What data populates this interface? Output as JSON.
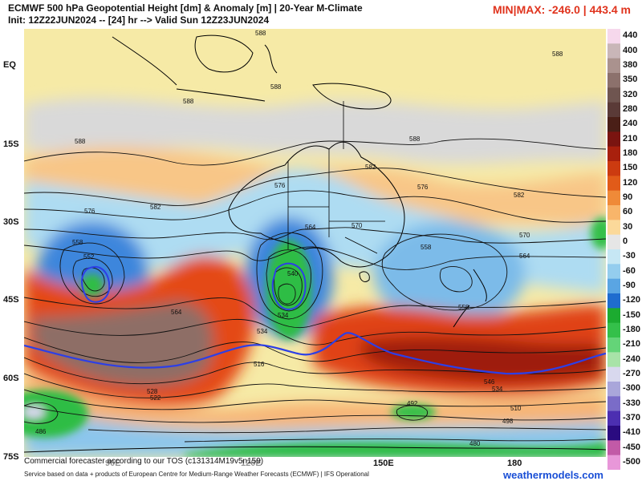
{
  "header": {
    "title": "ECMWF 500 hPa Geopotential Height [dm] & Anomaly [m] | 20-Year M-Climate",
    "init": "Init: 12Z22JUN2024 -- [24] hr --> Valid Sun 12Z23JUN2024",
    "minmax": "MIN|MAX: -246.0 | 443.4 m"
  },
  "axes": {
    "lat_labels": [
      "EQ",
      "15S",
      "30S",
      "45S",
      "60S",
      "75S"
    ],
    "lon_labels": [
      "90E",
      "120E",
      "150E",
      "180"
    ]
  },
  "colorbar": {
    "labels": [
      "440",
      "400",
      "380",
      "350",
      "320",
      "280",
      "240",
      "210",
      "180",
      "150",
      "120",
      "90",
      "60",
      "30",
      "0",
      "-30",
      "-60",
      "-90",
      "-120",
      "-150",
      "-180",
      "-210",
      "-240",
      "-270",
      "-300",
      "-330",
      "-370",
      "-410",
      "-450",
      "-500"
    ],
    "colors": [
      "#f6d8ec",
      "#c9b6b8",
      "#aa928e",
      "#8c716c",
      "#6f5550",
      "#5a3a37",
      "#4a1f17",
      "#7a1410",
      "#a8200d",
      "#cc3b10",
      "#e15b19",
      "#ef8a38",
      "#f8b56a",
      "#fbd99a",
      "#e6e6e6",
      "#c6e7f4",
      "#94cdee",
      "#5aa5e3",
      "#1f6ccf",
      "#1cab30",
      "#34c04a",
      "#64d478",
      "#a8e3a8",
      "#d8d8ee",
      "#a9a6da",
      "#7a6cc8",
      "#4c2fb1",
      "#2a0b80",
      "#c25aa7",
      "#e897d9"
    ]
  },
  "contour_labels": {
    "c1": "588",
    "c2": "588",
    "c3": "588",
    "c4": "588",
    "c5": "588",
    "c6": "588",
    "c7": "582",
    "c8": "582",
    "c9": "582",
    "c10": "576",
    "c11": "576",
    "c12": "576",
    "c13": "570",
    "c14": "570",
    "c15": "564",
    "c16": "564",
    "c17": "564",
    "c18": "558",
    "c19": "558",
    "c20": "558",
    "c21": "552",
    "c22": "540",
    "c23": "534",
    "c24": "534",
    "c25": "528",
    "c26": "522",
    "c27": "516",
    "c28": "546",
    "c29": "534",
    "c30": "510",
    "c31": "498",
    "c32": "492",
    "c33": "486",
    "c34": "480"
  },
  "footer": {
    "tos": "Commercial forecaster according to our TOS (c131314M19v5n159)",
    "credit": "Service based on data + products of European Centre for Medium-Range Weather Forecasts (ECMWF) | IFS Operational",
    "website": "weathermodels.com"
  }
}
